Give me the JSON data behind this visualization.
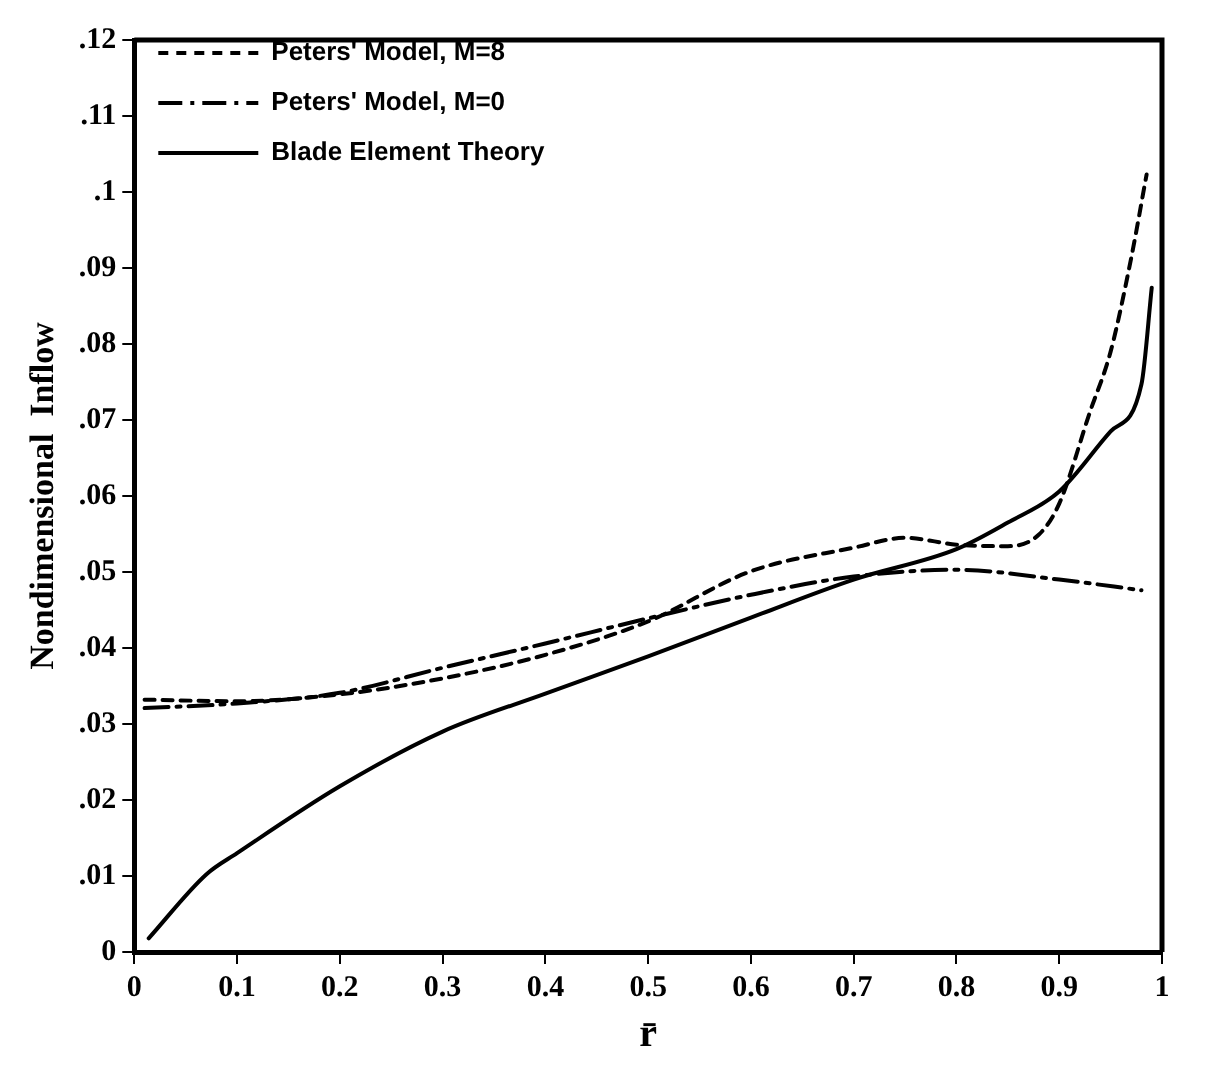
{
  "chart_data": {
    "type": "line",
    "xlabel": "r̄",
    "ylabel": "Nondimensional  Inflow",
    "xlim": [
      0,
      1
    ],
    "xticks": [
      0,
      0.1,
      0.2,
      0.3,
      0.4,
      0.5,
      0.6,
      0.7,
      0.8,
      0.9,
      1
    ],
    "ylim": [
      0,
      0.12
    ],
    "yticks": [
      0,
      {
        "value": 0.01,
        "label": ".01"
      },
      {
        "value": 0.02,
        "label": ".02"
      },
      {
        "value": 0.03,
        "label": ".03"
      },
      {
        "value": 0.04,
        "label": ".04"
      },
      {
        "value": 0.05,
        "label": ".05"
      },
      {
        "value": 0.06,
        "label": ".06"
      },
      {
        "value": 0.07,
        "label": ".07"
      },
      {
        "value": 0.08,
        "label": ".08"
      },
      {
        "value": 0.09,
        "label": ".09"
      },
      {
        "value": 0.1,
        "label": ".1"
      },
      {
        "value": 0.11,
        "label": ".11"
      },
      {
        "value": 0.12,
        "label": ".12"
      }
    ],
    "grid": false,
    "legend": "top left",
    "marker": "none",
    "series": [
      {
        "name": "Peters' Model, M=8",
        "color": "#000000",
        "line_style": "dashed",
        "x": [
          0.01,
          0.1,
          0.2,
          0.3,
          0.4,
          0.5,
          0.6,
          0.7,
          0.75,
          0.8,
          0.85,
          0.88,
          0.9,
          0.93,
          0.95,
          0.97,
          0.985
        ],
        "values": [
          0.0332,
          0.033,
          0.0339,
          0.036,
          0.0391,
          0.0435,
          0.0501,
          0.0532,
          0.0545,
          0.0536,
          0.0534,
          0.0549,
          0.059,
          0.0711,
          0.079,
          0.0913,
          0.1023
        ]
      },
      {
        "name": "Peters' Model, M=0",
        "color": "#000000",
        "line_style": "dashdot",
        "x": [
          0.01,
          0.1,
          0.2,
          0.3,
          0.4,
          0.5,
          0.6,
          0.7,
          0.8,
          0.9,
          0.98
        ],
        "values": [
          0.0321,
          0.0327,
          0.0341,
          0.0374,
          0.0406,
          0.0439,
          0.047,
          0.0494,
          0.0503,
          0.049,
          0.0476
        ]
      },
      {
        "name": "Blade Element Theory",
        "color": "#000000",
        "line_style": "solid",
        "x": [
          0.014,
          0.07,
          0.1,
          0.2,
          0.3,
          0.4,
          0.5,
          0.6,
          0.7,
          0.8,
          0.85,
          0.9,
          0.95,
          0.98,
          0.99
        ],
        "values": [
          0.0018,
          0.0102,
          0.013,
          0.0218,
          0.029,
          0.034,
          0.0389,
          0.044,
          0.049,
          0.053,
          0.0565,
          0.0606,
          0.0685,
          0.0747,
          0.0874
        ]
      }
    ]
  }
}
